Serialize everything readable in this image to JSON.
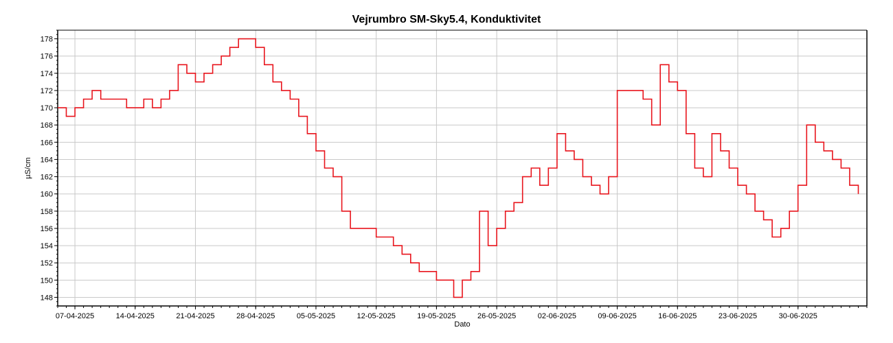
{
  "chart_data": {
    "type": "line",
    "title": "Vejrumbro SM-Sky5.4, Konduktivitet",
    "xlabel": "Dato",
    "ylabel": "µS/cm",
    "x_tick_labels": [
      "07-04-2025",
      "14-04-2025",
      "21-04-2025",
      "28-04-2025",
      "05-05-2025",
      "12-05-2025",
      "19-05-2025",
      "26-05-2025",
      "02-06-2025",
      "09-06-2025",
      "16-06-2025",
      "23-06-2025",
      "30-06-2025"
    ],
    "y_ticks": [
      148,
      150,
      152,
      154,
      156,
      158,
      160,
      162,
      164,
      166,
      168,
      170,
      172,
      174,
      176,
      178
    ],
    "xlim": [
      "2025-04-05",
      "2025-07-08"
    ],
    "ylim": [
      147,
      179
    ],
    "grid": true,
    "line_color": "#e8141c",
    "series": [
      {
        "name": "",
        "x": [
          "2025-04-05",
          "2025-04-06",
          "2025-04-07",
          "2025-04-08",
          "2025-04-09",
          "2025-04-10",
          "2025-04-11",
          "2025-04-12",
          "2025-04-13",
          "2025-04-14",
          "2025-04-15",
          "2025-04-16",
          "2025-04-17",
          "2025-04-18",
          "2025-04-19",
          "2025-04-20",
          "2025-04-21",
          "2025-04-22",
          "2025-04-23",
          "2025-04-24",
          "2025-04-25",
          "2025-04-26",
          "2025-04-27",
          "2025-04-28",
          "2025-04-29",
          "2025-04-30",
          "2025-05-01",
          "2025-05-02",
          "2025-05-03",
          "2025-05-04",
          "2025-05-05",
          "2025-05-06",
          "2025-05-07",
          "2025-05-08",
          "2025-05-09",
          "2025-05-10",
          "2025-05-11",
          "2025-05-12",
          "2025-05-13",
          "2025-05-14",
          "2025-05-15",
          "2025-05-16",
          "2025-05-17",
          "2025-05-18",
          "2025-05-19",
          "2025-05-20",
          "2025-05-21",
          "2025-05-22",
          "2025-05-23",
          "2025-05-24",
          "2025-05-25",
          "2025-05-26",
          "2025-05-27",
          "2025-05-28",
          "2025-05-29",
          "2025-05-30",
          "2025-05-31",
          "2025-06-01",
          "2025-06-02",
          "2025-06-03",
          "2025-06-04",
          "2025-06-05",
          "2025-06-06",
          "2025-06-07",
          "2025-06-08",
          "2025-06-09",
          "2025-06-10",
          "2025-06-11",
          "2025-06-12",
          "2025-06-13",
          "2025-06-14",
          "2025-06-15",
          "2025-06-16",
          "2025-06-17",
          "2025-06-18",
          "2025-06-19",
          "2025-06-20",
          "2025-06-21",
          "2025-06-22",
          "2025-06-23",
          "2025-06-24",
          "2025-06-25",
          "2025-06-26",
          "2025-06-27",
          "2025-06-28",
          "2025-06-29",
          "2025-06-30",
          "2025-07-01",
          "2025-07-02",
          "2025-07-03",
          "2025-07-04",
          "2025-07-05",
          "2025-07-06",
          "2025-07-07"
        ],
        "y": [
          170,
          169,
          170,
          171,
          172,
          171,
          171,
          171,
          170,
          170,
          171,
          170,
          171,
          172,
          175,
          174,
          173,
          174,
          175,
          176,
          177,
          178,
          178,
          177,
          175,
          173,
          172,
          171,
          169,
          167,
          165,
          163,
          162,
          158,
          156,
          156,
          156,
          155,
          155,
          154,
          153,
          152,
          151,
          151,
          150,
          150,
          148,
          150,
          151,
          158,
          154,
          156,
          158,
          159,
          162,
          163,
          161,
          163,
          167,
          165,
          164,
          162,
          161,
          160,
          162,
          172,
          172,
          172,
          171,
          168,
          175,
          173,
          172,
          167,
          163,
          162,
          167,
          165,
          163,
          161,
          160,
          158,
          157,
          155,
          156,
          158,
          161,
          168,
          166,
          165,
          164,
          163,
          161,
          160
        ]
      }
    ]
  }
}
